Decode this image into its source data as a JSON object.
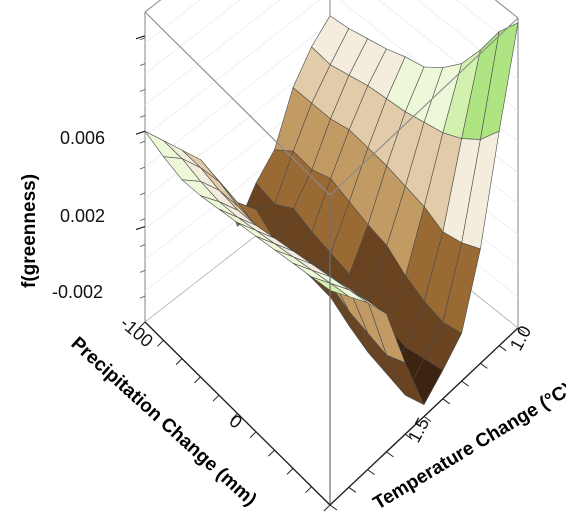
{
  "chart_data": {
    "type": "surface3d",
    "title": "",
    "zlabel": "f(greenness)",
    "xlabel": "Precipitation Change (mm)",
    "ylabel": "Temperature Change (°C)",
    "z_ticks": [
      "0.006",
      "0.002",
      "-0.002"
    ],
    "x_ticks": [
      "-100",
      "0"
    ],
    "y_ticks": [
      "1.0",
      "1.5"
    ],
    "x_range": [
      -150,
      100
    ],
    "y_range": [
      0.8,
      2.0
    ],
    "z_range": [
      -0.006,
      0.007
    ],
    "colormap": [
      "#3c2410",
      "#6a4420",
      "#9a6a34",
      "#c29a64",
      "#e2cba8",
      "#f4ecdc",
      "#ecf8d8",
      "#d2f0ae",
      "#aee482",
      "#86d45c",
      "#56bc34"
    ],
    "z_max": 0.0068,
    "z_min": -0.0058,
    "x_grid": [
      -150,
      -125,
      -100,
      -75,
      -50,
      -25,
      0,
      25,
      50,
      75,
      100
    ],
    "y_grid": [
      0.8,
      0.92,
      1.04,
      1.16,
      1.28,
      1.4,
      1.52,
      1.64,
      1.76,
      1.88,
      2.0
    ],
    "surface_z": [
      [
        0.002,
        0.001,
        0.0,
        -0.001,
        -0.0025,
        -0.005,
        -0.0038,
        -0.003,
        -0.001,
        0.0001,
        0.0008
      ],
      [
        0.0017,
        0.001,
        0.0,
        -0.0012,
        -0.0027,
        -0.0036,
        -0.004,
        -0.0024,
        -0.001,
        0.0,
        0.0009
      ],
      [
        0.0015,
        0.0008,
        -0.0002,
        -0.0015,
        -0.003,
        -0.0042,
        -0.0035,
        -0.0025,
        -0.001,
        0.0002,
        0.0011
      ],
      [
        0.0016,
        0.0007,
        -0.0003,
        -0.0016,
        -0.003,
        -0.004,
        -0.0038,
        -0.0022,
        -0.0008,
        0.0004,
        0.0013
      ],
      [
        0.0018,
        0.0008,
        -0.0002,
        -0.0014,
        -0.003,
        -0.0044,
        -0.004,
        -0.0025,
        -0.0009,
        0.0005,
        0.0016
      ],
      [
        0.002,
        0.001,
        0.0,
        -0.0012,
        -0.0028,
        -0.0045,
        -0.0042,
        -0.0028,
        -0.001,
        0.0006,
        0.0018
      ],
      [
        0.0022,
        0.0012,
        0.0002,
        -0.001,
        -0.0026,
        -0.005,
        -0.0048,
        -0.003,
        -0.0012,
        0.0008,
        0.0024
      ],
      [
        0.0024,
        0.0014,
        0.0004,
        -0.0008,
        -0.003,
        -0.0054,
        -0.005,
        -0.0036,
        -0.0014,
        0.001,
        0.0032
      ],
      [
        0.0026,
        0.0016,
        0.0006,
        -0.0006,
        -0.0032,
        -0.0056,
        -0.0052,
        -0.004,
        -0.0018,
        0.0014,
        0.0044
      ],
      [
        0.0028,
        0.0018,
        0.0008,
        -0.0004,
        -0.0034,
        -0.0058,
        -0.005,
        -0.0042,
        -0.0016,
        0.002,
        0.0058
      ],
      [
        0.003,
        0.002,
        0.001,
        -0.0002,
        -0.003,
        -0.0055,
        -0.0048,
        -0.004,
        -0.0012,
        0.003,
        0.0068
      ]
    ]
  }
}
